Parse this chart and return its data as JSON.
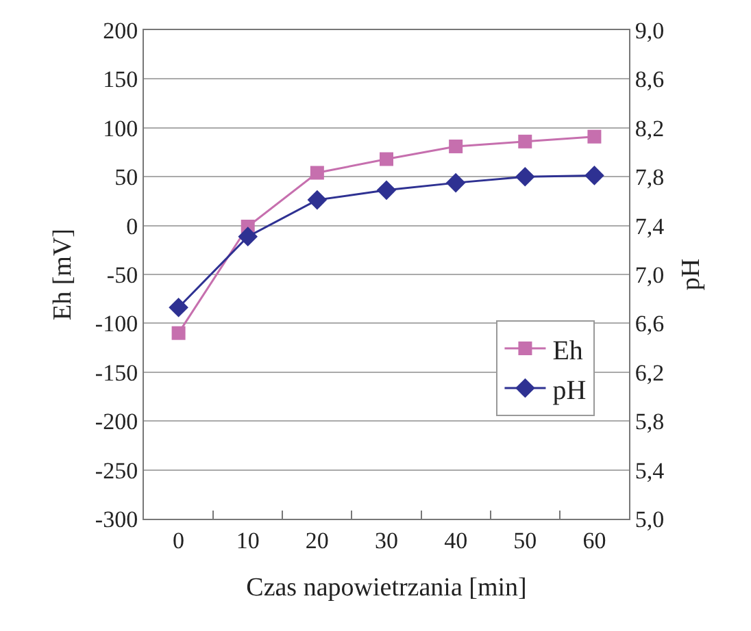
{
  "chart_data": {
    "type": "line",
    "xlabel": "Czas napowietrzania [min]",
    "ylabel": "Eh [mV]",
    "y2label": "pH",
    "categories": [
      "0",
      "10",
      "20",
      "30",
      "40",
      "50",
      "60"
    ],
    "series": [
      {
        "name": "Eh",
        "color": "#c66fae",
        "marker": "square",
        "values": [
          -110,
          -1,
          54,
          68,
          81,
          86,
          91
        ]
      },
      {
        "name": "pH",
        "color": "#2e3192",
        "marker": "diamond",
        "axis": "y2",
        "values": [
          6.73,
          7.31,
          7.61,
          7.69,
          7.75,
          7.8,
          7.81
        ]
      }
    ],
    "ylim": [
      -300,
      200
    ],
    "yticks": [
      -300,
      -250,
      -200,
      -150,
      -100,
      -50,
      0,
      50,
      100,
      150,
      200
    ],
    "y2lim": [
      5.0,
      9.0
    ],
    "y2ticks": [
      {
        "value": 5.0,
        "label": "5,0"
      },
      {
        "value": 5.4,
        "label": "5,4"
      },
      {
        "value": 5.8,
        "label": "5,8"
      },
      {
        "value": 6.2,
        "label": "6,2"
      },
      {
        "value": 6.6,
        "label": "6,6"
      },
      {
        "value": 7.0,
        "label": "7,0"
      },
      {
        "value": 7.4,
        "label": "7,4"
      },
      {
        "value": 7.8,
        "label": "7,8"
      },
      {
        "value": 8.2,
        "label": "8,2"
      },
      {
        "value": 8.6,
        "label": "8,6"
      },
      {
        "value": 9.0,
        "label": "9,0"
      }
    ],
    "grid": "y",
    "legend": "bottom right",
    "line_style": "solid"
  }
}
